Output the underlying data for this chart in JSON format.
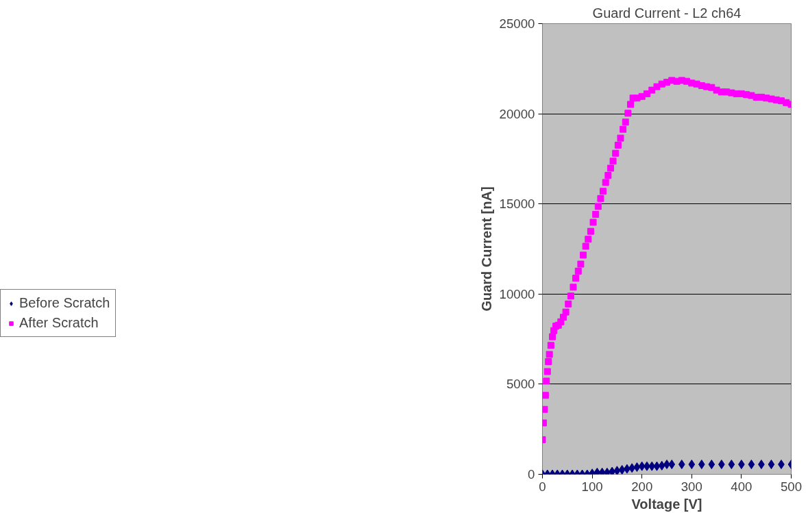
{
  "chart_data": {
    "type": "scatter",
    "title": "Guard Current - L2 ch64",
    "xlabel": "Voltage [V]",
    "ylabel": "Guard Current [nA]",
    "xlim": [
      0,
      500
    ],
    "xticks": [
      0,
      100,
      200,
      300,
      400,
      500
    ],
    "ylim": [
      0,
      25000
    ],
    "yticks": [
      0,
      5000,
      10000,
      15000,
      20000,
      25000
    ],
    "grid": "y",
    "legend": "left",
    "series": [
      {
        "name": "Before Scratch",
        "color": "#000080",
        "marker": "diamond",
        "x": [
          0,
          10,
          20,
          30,
          40,
          50,
          60,
          70,
          80,
          90,
          100,
          110,
          120,
          130,
          140,
          150,
          160,
          170,
          180,
          190,
          200,
          210,
          220,
          230,
          240,
          250,
          260,
          280,
          300,
          320,
          340,
          360,
          380,
          400,
          420,
          440,
          460,
          480,
          500
        ],
        "values": [
          0,
          0,
          0,
          0,
          0,
          0,
          0,
          0,
          0,
          0,
          50,
          100,
          100,
          100,
          150,
          200,
          250,
          300,
          350,
          400,
          450,
          450,
          450,
          450,
          480,
          550,
          550,
          550,
          550,
          550,
          550,
          550,
          550,
          550,
          550,
          550,
          550,
          550,
          550
        ]
      },
      {
        "name": "After Scratch",
        "color": "#ff00ff",
        "marker": "square",
        "x": [
          0,
          2,
          4,
          6,
          8,
          10,
          12,
          14,
          17,
          20,
          23,
          27,
          32,
          37,
          42,
          47,
          52,
          57,
          62,
          67,
          72,
          77,
          82,
          87,
          92,
          97,
          102,
          107,
          112,
          117,
          122,
          127,
          132,
          137,
          142,
          147,
          152,
          157,
          162,
          167,
          172,
          177,
          182,
          190,
          200,
          210,
          220,
          230,
          240,
          250,
          260,
          270,
          280,
          290,
          300,
          310,
          320,
          330,
          340,
          350,
          360,
          370,
          380,
          390,
          400,
          410,
          420,
          430,
          440,
          450,
          460,
          470,
          480,
          490,
          500
        ],
        "values": [
          1920,
          2850,
          3600,
          4380,
          5170,
          5700,
          6250,
          6650,
          7150,
          7630,
          7970,
          8220,
          8270,
          8460,
          8710,
          9000,
          9450,
          9890,
          10380,
          10880,
          11270,
          11660,
          12160,
          12650,
          13040,
          13480,
          13980,
          14420,
          14860,
          15300,
          15700,
          16190,
          16580,
          16980,
          17370,
          17810,
          18260,
          18650,
          19140,
          19540,
          20030,
          20520,
          20870,
          20870,
          20960,
          21110,
          21310,
          21500,
          21650,
          21750,
          21850,
          21800,
          21850,
          21800,
          21700,
          21650,
          21560,
          21500,
          21460,
          21310,
          21210,
          21210,
          21160,
          21110,
          21110,
          21060,
          21010,
          20920,
          20920,
          20870,
          20820,
          20770,
          20720,
          20620,
          20520
        ]
      }
    ]
  }
}
